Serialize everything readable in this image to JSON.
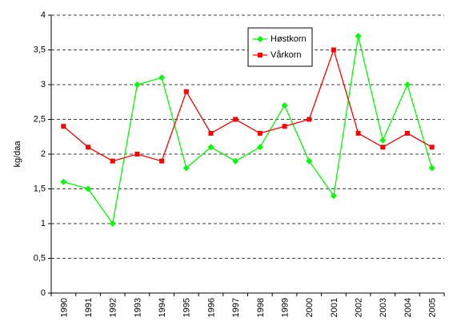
{
  "chart_data": {
    "type": "line",
    "y_label": "kg/daa",
    "categories": [
      "1990",
      "1991",
      "1992",
      "1993",
      "1994",
      "1995",
      "1996",
      "1997",
      "1998",
      "1999",
      "2000",
      "2001",
      "2002",
      "2003",
      "2004",
      "2005"
    ],
    "series": [
      {
        "name": "Høstkorn",
        "color": "#00ff00",
        "marker": "diamond",
        "values": [
          1.6,
          1.5,
          1.0,
          3.0,
          3.1,
          1.8,
          2.1,
          1.9,
          2.1,
          2.7,
          1.9,
          1.4,
          3.7,
          2.2,
          3.0,
          1.8
        ]
      },
      {
        "name": "Vårkorn",
        "color": "#ff0000",
        "marker": "square",
        "values": [
          2.4,
          2.1,
          1.9,
          2.0,
          1.9,
          2.9,
          2.3,
          2.5,
          2.3,
          2.4,
          2.5,
          3.5,
          2.3,
          2.1,
          2.3,
          2.1
        ]
      }
    ],
    "ylim": [
      0,
      4
    ],
    "yticks": [
      0,
      {
        "value": 0.5,
        "label": "0,5"
      },
      1,
      {
        "value": 1.5,
        "label": "1,5"
      },
      2,
      {
        "value": 2.5,
        "label": "2,5"
      },
      3,
      {
        "value": 3.5,
        "label": "3,5"
      },
      4
    ],
    "grid": true,
    "legend": "top-right"
  }
}
